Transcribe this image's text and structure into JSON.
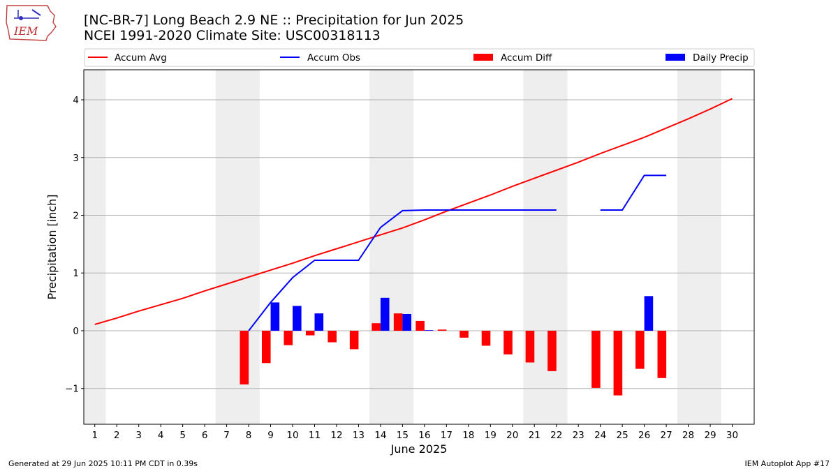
{
  "header": {
    "title_line1": "[NC-BR-7] Long Beach 2.9 NE :: Precipitation for Jun 2025",
    "title_line2": "NCEI 1991-2020 Climate Site: USC00318113"
  },
  "logo": {
    "text": "IEM"
  },
  "footer": {
    "left": "Generated at 29 Jun 2025 10:11 PM CDT in 0.39s",
    "right": "IEM Autoplot App #17"
  },
  "colors": {
    "avg": "#ff0000",
    "obs": "#0000ff",
    "diff": "#ff0000",
    "daily": "#0000ff",
    "weekend_shade": "#eeeeee",
    "grid": "#b0b0b0"
  },
  "chart_data": {
    "type": "bar",
    "xlabel": "June 2025",
    "ylabel": "Precipitation [inch]",
    "xlim": [
      0.5,
      31.0
    ],
    "ylim": [
      -1.62,
      4.52
    ],
    "yticks": [
      -1,
      0,
      1,
      2,
      3,
      4
    ],
    "ytick_labels": [
      "−1",
      "0",
      "1",
      "2",
      "3",
      "4"
    ],
    "days": [
      1,
      2,
      3,
      4,
      5,
      6,
      7,
      8,
      9,
      10,
      11,
      12,
      13,
      14,
      15,
      16,
      17,
      18,
      19,
      20,
      21,
      22,
      23,
      24,
      25,
      26,
      27,
      28,
      29,
      30
    ],
    "weekend_shading": [
      [
        0.5,
        1.5
      ],
      [
        6.5,
        8.5
      ],
      [
        13.5,
        15.5
      ],
      [
        20.5,
        22.5
      ],
      [
        27.5,
        29.5
      ]
    ],
    "grid": "y",
    "legend": {
      "placement": "top",
      "entries": [
        "Accum Avg",
        "Accum Obs",
        "Accum Diff",
        "Daily Precip"
      ]
    },
    "series": [
      {
        "name": "Accum Avg",
        "kind": "line",
        "x": [
          1,
          2,
          3,
          4,
          5,
          6,
          7,
          8,
          9,
          10,
          11,
          12,
          13,
          14,
          15,
          16,
          17,
          18,
          19,
          20,
          21,
          22,
          23,
          24,
          25,
          26,
          27,
          28,
          29,
          30
        ],
        "values": [
          0.11,
          0.22,
          0.34,
          0.45,
          0.56,
          0.69,
          0.81,
          0.93,
          1.05,
          1.17,
          1.3,
          1.42,
          1.54,
          1.66,
          1.78,
          1.92,
          2.07,
          2.21,
          2.35,
          2.5,
          2.64,
          2.78,
          2.92,
          3.07,
          3.21,
          3.35,
          3.51,
          3.67,
          3.84,
          4.02
        ]
      },
      {
        "name": "Accum Obs",
        "kind": "line",
        "x": [
          8,
          9,
          10,
          11,
          12,
          13,
          14,
          15,
          16,
          17,
          18,
          19,
          20,
          21,
          22,
          null,
          24,
          25,
          26,
          27
        ],
        "values": [
          0.0,
          0.49,
          0.92,
          1.22,
          1.22,
          1.22,
          1.79,
          2.08,
          2.09,
          2.09,
          2.09,
          2.09,
          2.09,
          2.09,
          2.09,
          null,
          2.09,
          2.09,
          2.69,
          2.69
        ]
      },
      {
        "name": "Accum Diff",
        "kind": "bar",
        "x": [
          8,
          9,
          10,
          11,
          12,
          13,
          14,
          15,
          16,
          17,
          18,
          19,
          20,
          21,
          22,
          24,
          25,
          26,
          27
        ],
        "values": [
          -0.93,
          -0.56,
          -0.25,
          -0.08,
          -0.2,
          -0.32,
          0.13,
          0.3,
          0.17,
          0.02,
          -0.12,
          -0.26,
          -0.41,
          -0.55,
          -0.7,
          -0.99,
          -1.12,
          -0.66,
          -0.82
        ]
      },
      {
        "name": "Daily Precip",
        "kind": "bar",
        "x": [
          9,
          10,
          11,
          14,
          15,
          16,
          26
        ],
        "values": [
          0.49,
          0.43,
          0.3,
          0.57,
          0.29,
          0.01,
          0.6
        ]
      }
    ]
  }
}
